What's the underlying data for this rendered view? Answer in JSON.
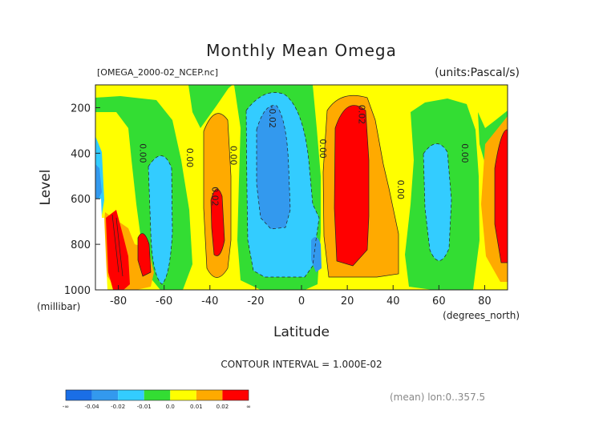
{
  "chart_data": {
    "type": "heatmap",
    "title": "Monthly Mean Omega",
    "file_label": "[OMEGA_2000-02_NCEP.nc]",
    "units_label": "(units:Pascal/s)",
    "xlabel": "Latitude",
    "x_units": "(degrees_north)",
    "ylabel": "Level",
    "y_units": "(millibar)",
    "x_ticks": [
      -80,
      -60,
      -40,
      -20,
      0,
      20,
      40,
      60,
      80
    ],
    "x_tick_labels": [
      "-80",
      "-60",
      "-40",
      "-20",
      "0",
      "20",
      "40",
      "60",
      "80"
    ],
    "y_ticks": [
      200,
      400,
      600,
      800,
      1000
    ],
    "y_tick_labels": [
      "200",
      "400",
      "600",
      "800",
      "1000"
    ],
    "xlim": [
      -90,
      90
    ],
    "ylim": [
      1000,
      100
    ],
    "contour_interval_text": "CONTOUR INTERVAL = 1.000E-02",
    "footer_text": "(mean) lon:0..357.5",
    "contour_labels": [
      {
        "text": "0.00",
        "lat": -70.5,
        "lev": 400
      },
      {
        "text": "0.00",
        "lat": -50,
        "lev": 420
      },
      {
        "text": "0.02",
        "lat": -39,
        "lev": 590
      },
      {
        "text": "0.00",
        "lat": -31,
        "lev": 410
      },
      {
        "text": "-0.02",
        "lat": -14,
        "lev": 240
      },
      {
        "text": "0.00",
        "lat": 8,
        "lev": 380
      },
      {
        "text": "0.02",
        "lat": 25,
        "lev": 230
      },
      {
        "text": "0.00",
        "lat": 42,
        "lev": 560
      },
      {
        "text": "0.00",
        "lat": 70,
        "lev": 400
      }
    ],
    "legend": {
      "bins": [
        {
          "label": "-∞",
          "color": "#1a6ee6"
        },
        {
          "label": "-0.04",
          "color": "#3399ee"
        },
        {
          "label": "-0.02",
          "color": "#33ccff"
        },
        {
          "label": "-0.01",
          "color": "#33dd33"
        },
        {
          "label": "0.0",
          "color": "#ffff00"
        },
        {
          "label": "0.01",
          "color": "#ffaa00"
        },
        {
          "label": "0.02",
          "color": "#ff0000"
        }
      ],
      "end_label": "∞"
    }
  }
}
